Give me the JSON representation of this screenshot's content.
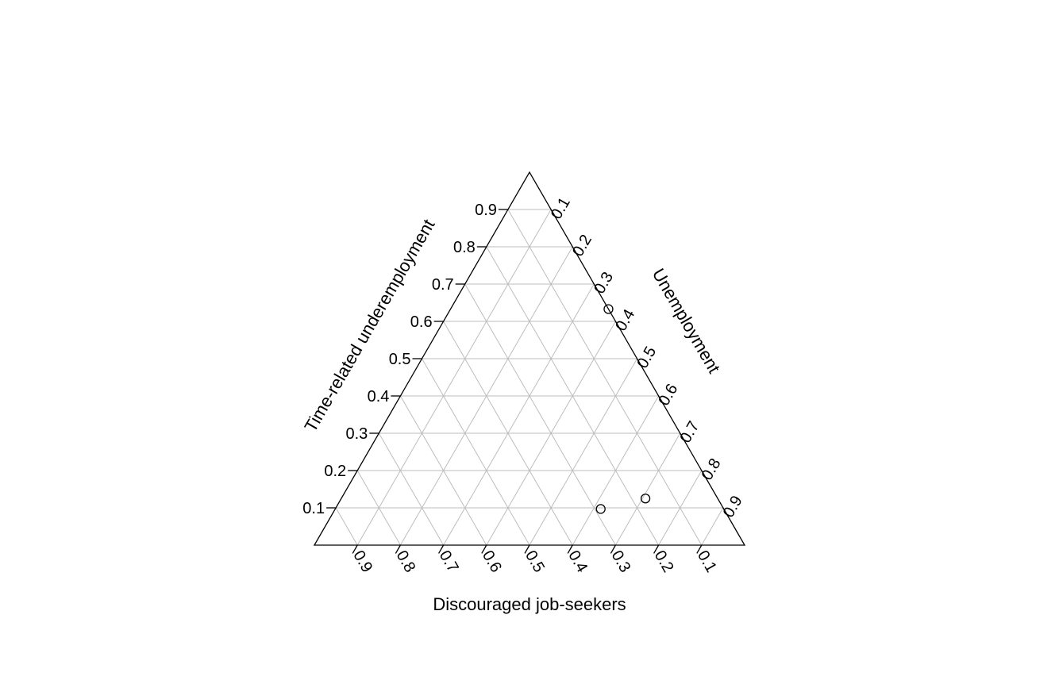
{
  "chart_data": {
    "type": "ternary",
    "axes": {
      "top": "Time-related underemployment",
      "right": "Unemployment",
      "bottom": "Discouraged job-seekers"
    },
    "ticks": [
      0.1,
      0.2,
      0.3,
      0.4,
      0.5,
      0.6,
      0.7,
      0.8,
      0.9
    ],
    "tick_labels": [
      "0.1",
      "0.2",
      "0.3",
      "0.4",
      "0.5",
      "0.6",
      "0.7",
      "0.8",
      "0.9"
    ],
    "grid": true,
    "points": [
      {
        "time_related_underemployment": 0.633,
        "unemployment": 0.367,
        "discouraged_job_seekers": 0.0
      },
      {
        "time_related_underemployment": 0.125,
        "unemployment": 0.707,
        "discouraged_job_seekers": 0.168
      },
      {
        "time_related_underemployment": 0.097,
        "unemployment": 0.617,
        "discouraged_job_seekers": 0.286
      }
    ]
  }
}
